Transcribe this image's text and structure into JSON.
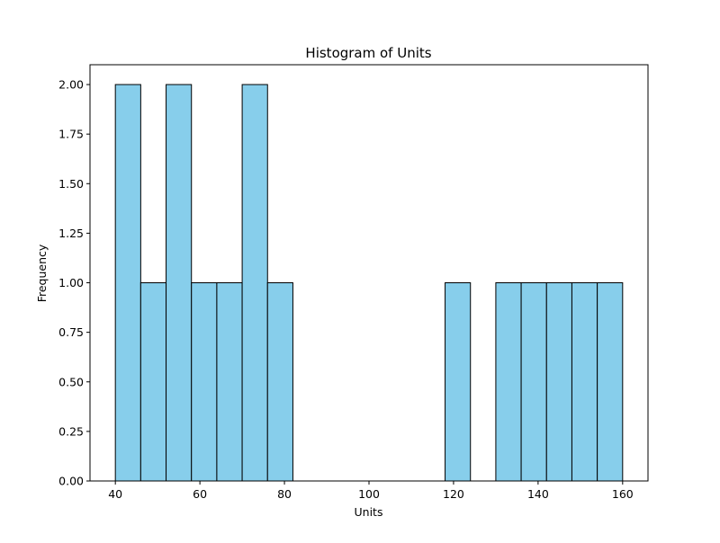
{
  "chart_data": {
    "type": "bar",
    "title": "Histogram of Units",
    "xlabel": "Units",
    "ylabel": "Frequency",
    "xlim": [
      34,
      166
    ],
    "ylim": [
      0,
      2.1
    ],
    "bin_width": 6,
    "bins": [
      {
        "start": 40,
        "end": 46,
        "count": 2
      },
      {
        "start": 46,
        "end": 52,
        "count": 1
      },
      {
        "start": 52,
        "end": 58,
        "count": 2
      },
      {
        "start": 58,
        "end": 64,
        "count": 1
      },
      {
        "start": 64,
        "end": 70,
        "count": 1
      },
      {
        "start": 70,
        "end": 76,
        "count": 2
      },
      {
        "start": 76,
        "end": 82,
        "count": 1
      },
      {
        "start": 82,
        "end": 88,
        "count": 0
      },
      {
        "start": 88,
        "end": 94,
        "count": 0
      },
      {
        "start": 94,
        "end": 100,
        "count": 0
      },
      {
        "start": 100,
        "end": 106,
        "count": 0
      },
      {
        "start": 106,
        "end": 112,
        "count": 0
      },
      {
        "start": 112,
        "end": 118,
        "count": 0
      },
      {
        "start": 118,
        "end": 124,
        "count": 1
      },
      {
        "start": 124,
        "end": 130,
        "count": 0
      },
      {
        "start": 130,
        "end": 136,
        "count": 1
      },
      {
        "start": 136,
        "end": 142,
        "count": 1
      },
      {
        "start": 142,
        "end": 148,
        "count": 1
      },
      {
        "start": 148,
        "end": 154,
        "count": 1
      },
      {
        "start": 154,
        "end": 160,
        "count": 1
      }
    ],
    "xticks": [
      40,
      60,
      80,
      100,
      120,
      140,
      160
    ],
    "xtick_labels": [
      "40",
      "60",
      "80",
      "100",
      "120",
      "140",
      "160"
    ],
    "yticks": [
      0,
      0.25,
      0.5,
      0.75,
      1.0,
      1.25,
      1.5,
      1.75,
      2.0
    ],
    "ytick_labels": [
      "0.00",
      "0.25",
      "0.50",
      "0.75",
      "1.00",
      "1.25",
      "1.50",
      "1.75",
      "2.00"
    ],
    "grid": false,
    "legend": "none",
    "bar_color": "#87ceeb",
    "edge_color": "#000000"
  }
}
